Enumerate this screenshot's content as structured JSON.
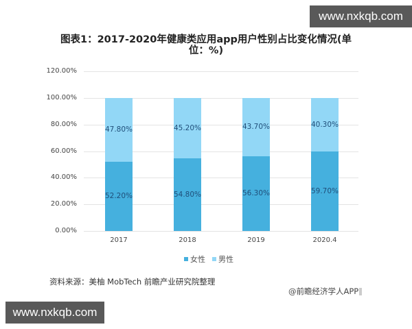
{
  "watermarks": {
    "top_right": "www.nxkqb.com",
    "bottom_left": "www.nxkqb.com"
  },
  "title_line1": "图表1：2017-2020年健康类应用app用户性别占比变化情况(单",
  "title_line2": "位：%)",
  "source": "资料来源：美柚 MobTech 前瞻产业研究院整理",
  "credit": "@前瞻经济学人APP",
  "colors": {
    "female": "#45b0de",
    "male": "#92d7f6"
  },
  "chart_data": {
    "type": "bar",
    "stacked": true,
    "title": "图表1：2017-2020年健康类应用app用户性别占比变化情况(单位：%)",
    "xlabel": "",
    "ylabel": "",
    "ylim": [
      0,
      120
    ],
    "yticks": [
      "0.00%",
      "20.00%",
      "40.00%",
      "60.00%",
      "80.00%",
      "100.00%",
      "120.00%"
    ],
    "categories": [
      "2017",
      "2018",
      "2019",
      "2020.4"
    ],
    "series": [
      {
        "name": "女性",
        "values": [
          52.2,
          54.8,
          56.3,
          59.7
        ],
        "labels": [
          "52.20%",
          "54.80%",
          "56.30%",
          "59.70%"
        ]
      },
      {
        "name": "男性",
        "values": [
          47.8,
          45.2,
          43.7,
          40.3
        ],
        "labels": [
          "47.80%",
          "45.20%",
          "43.70%",
          "40.30%"
        ]
      }
    ],
    "legend": [
      "女性",
      "男性"
    ],
    "legend_position": "bottom",
    "grid": true
  }
}
